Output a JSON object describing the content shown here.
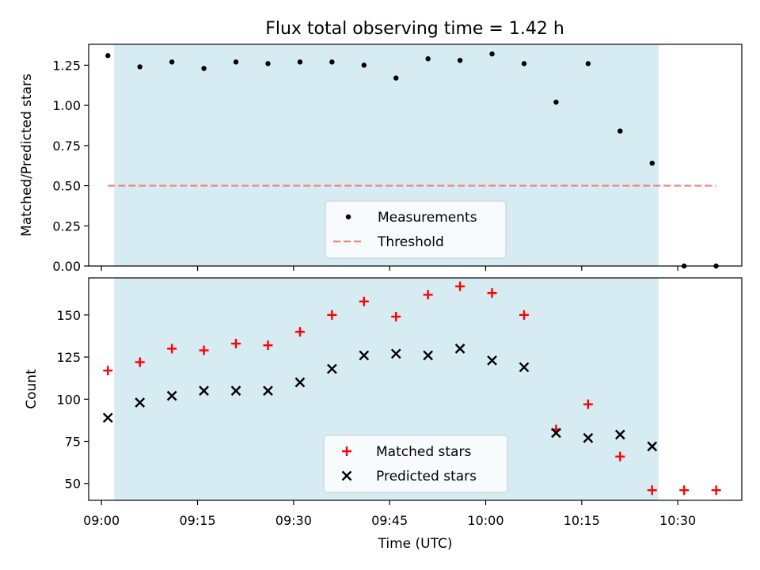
{
  "title": "Flux total observing time = 1.42 h",
  "chart_data": [
    {
      "type": "scatter",
      "title": "Flux total observing time = 1.42 h",
      "xlabel": "",
      "ylabel": "Matched/Predicted stars",
      "xlim": [
        "08:58",
        "10:40"
      ],
      "ylim": [
        0,
        1.38
      ],
      "yticks": [
        0.0,
        0.25,
        0.5,
        0.75,
        1.0,
        1.25
      ],
      "ytick_labels": [
        "0.00",
        "0.25",
        "0.50",
        "0.75",
        "1.00",
        "1.25"
      ],
      "shaded_region": {
        "x_start": "09:02",
        "x_end": "10:27",
        "color": "#add8e6"
      },
      "legend_position": "lower center",
      "series": [
        {
          "name": "Measurements",
          "kind": "scatter",
          "marker": "dot",
          "color": "#000000",
          "x": [
            "09:01",
            "09:06",
            "09:11",
            "09:16",
            "09:21",
            "09:26",
            "09:31",
            "09:36",
            "09:41",
            "09:46",
            "09:51",
            "09:56",
            "10:01",
            "10:06",
            "10:11",
            "10:16",
            "10:21",
            "10:26",
            "10:31",
            "10:36"
          ],
          "y": [
            1.31,
            1.24,
            1.27,
            1.23,
            1.27,
            1.26,
            1.27,
            1.27,
            1.25,
            1.17,
            1.29,
            1.28,
            1.32,
            1.26,
            1.02,
            1.26,
            0.84,
            0.64,
            0.0,
            0.0
          ]
        },
        {
          "name": "Threshold",
          "kind": "line",
          "style": "dashed",
          "color": "#f08080",
          "x": [
            "09:01",
            "10:36"
          ],
          "y": [
            0.5,
            0.5
          ]
        }
      ]
    },
    {
      "type": "scatter",
      "xlabel": "Time (UTC)",
      "ylabel": "Count",
      "xlim": [
        "08:58",
        "10:40"
      ],
      "ylim": [
        40,
        172
      ],
      "xticks": [
        "09:00",
        "09:15",
        "09:30",
        "09:45",
        "10:00",
        "10:15",
        "10:30"
      ],
      "yticks": [
        50,
        75,
        100,
        125,
        150
      ],
      "ytick_labels": [
        "50",
        "75",
        "100",
        "125",
        "150"
      ],
      "shaded_region": {
        "x_start": "09:02",
        "x_end": "10:27",
        "color": "#add8e6"
      },
      "legend_position": "lower center",
      "series": [
        {
          "name": "Matched stars",
          "kind": "scatter",
          "marker": "plus",
          "color": "#ff0000",
          "x": [
            "09:01",
            "09:06",
            "09:11",
            "09:16",
            "09:21",
            "09:26",
            "09:31",
            "09:36",
            "09:41",
            "09:46",
            "09:51",
            "09:56",
            "10:01",
            "10:06",
            "10:11",
            "10:16",
            "10:21",
            "10:26",
            "10:31",
            "10:36"
          ],
          "y": [
            117,
            122,
            130,
            129,
            133,
            132,
            140,
            150,
            158,
            149,
            162,
            167,
            163,
            150,
            82,
            97,
            66,
            46,
            46,
            46
          ]
        },
        {
          "name": "Predicted stars",
          "kind": "scatter",
          "marker": "x",
          "color": "#000000",
          "x": [
            "09:01",
            "09:06",
            "09:11",
            "09:16",
            "09:21",
            "09:26",
            "09:31",
            "09:36",
            "09:41",
            "09:46",
            "09:51",
            "09:56",
            "10:01",
            "10:06",
            "10:11",
            "10:16",
            "10:21",
            "10:26"
          ],
          "y": [
            89,
            98,
            102,
            105,
            105,
            105,
            110,
            118,
            126,
            127,
            126,
            130,
            123,
            119,
            80,
            77,
            79,
            72
          ]
        }
      ]
    }
  ]
}
